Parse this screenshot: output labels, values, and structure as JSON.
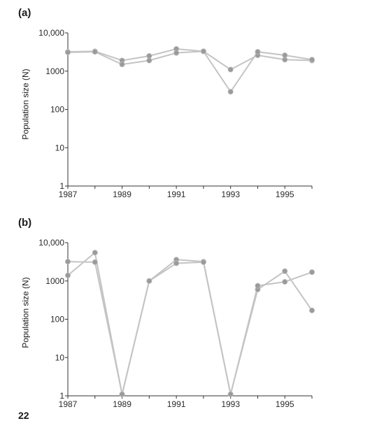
{
  "panels": {
    "a": {
      "label": "(a)"
    },
    "b": {
      "label": "(b)"
    }
  },
  "footer_text": "22",
  "colors": {
    "line": "#c4c4c4",
    "point": "#9a9a9a",
    "axis": "#333333"
  },
  "chart_data": [
    {
      "type": "line",
      "panel": "(a)",
      "title": "",
      "xlabel": "",
      "ylabel": "Population size (N)",
      "yscale": "log",
      "ylim": [
        1,
        10000
      ],
      "xlim": [
        1987,
        1996
      ],
      "xticks": [
        "1987",
        "1989",
        "1991",
        "1993",
        "1995"
      ],
      "yticks": [
        "1",
        "10",
        "100",
        "1000",
        "10,000"
      ],
      "x": [
        1987,
        1988,
        1989,
        1990,
        1991,
        1992,
        1993,
        1994,
        1995,
        1996
      ],
      "series": [
        {
          "values": [
            3200,
            3300,
            1900,
            2500,
            3800,
            3300,
            1100,
            2600,
            2000,
            1900
          ]
        },
        {
          "values": [
            3100,
            3200,
            1500,
            1900,
            3000,
            3300,
            290,
            3200,
            2600,
            2000
          ]
        }
      ]
    },
    {
      "type": "line",
      "panel": "(b)",
      "title": "",
      "xlabel": "",
      "ylabel": "Population size (N)",
      "yscale": "log",
      "ylim": [
        1,
        10000
      ],
      "xlim": [
        1987,
        1996
      ],
      "xticks": [
        "1987",
        "1989",
        "1991",
        "1993",
        "1995"
      ],
      "yticks": [
        "1",
        "10",
        "100",
        "1000",
        "10,000"
      ],
      "x": [
        1987,
        1988,
        1989,
        1990,
        1991,
        1992,
        1993,
        1994,
        1995,
        1996
      ],
      "series": [
        {
          "values": [
            1400,
            5500,
            1.1,
            1000,
            3600,
            3200,
            1.1,
            600,
            1800,
            170
          ]
        },
        {
          "values": [
            3200,
            3100,
            1.1,
            1000,
            2900,
            3100,
            1.1,
            750,
            950,
            1700
          ]
        }
      ]
    }
  ]
}
